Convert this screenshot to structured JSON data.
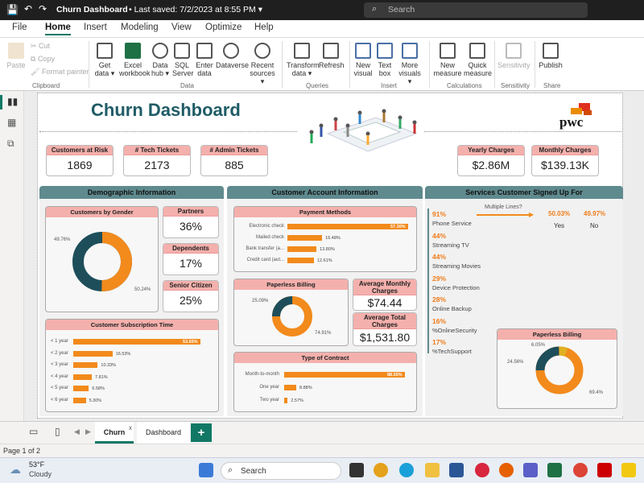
{
  "titlebar": {
    "doc_title": "Churn Dashboard",
    "saved": "Last saved: 7/2/2023 at 8:55 PM",
    "search_placeholder": "Search"
  },
  "menu": {
    "items": [
      "File",
      "Home",
      "Insert",
      "Modeling",
      "View",
      "Optimize",
      "Help"
    ],
    "active": "Home"
  },
  "ribbon": {
    "clipboard": {
      "paste": "Paste",
      "cut": "Cut",
      "copy": "Copy",
      "format_painter": "Format painter",
      "group": "Clipboard"
    },
    "data": {
      "get_data": "Get data",
      "excel": "Excel workbook",
      "data_hub": "Data hub",
      "sql": "SQL Server",
      "enter": "Enter data",
      "dataverse": "Dataverse",
      "recent": "Recent sources",
      "group": "Data"
    },
    "queries": {
      "transform": "Transform data",
      "refresh": "Refresh",
      "group": "Queries"
    },
    "insert": {
      "new_visual": "New visual",
      "text_box": "Text box",
      "more_visuals": "More visuals",
      "group": "Insert"
    },
    "calculations": {
      "new_measure": "New measure",
      "quick_measure": "Quick measure",
      "group": "Calculations"
    },
    "sensitivity": {
      "label": "Sensitivity",
      "group": "Sensitivity"
    },
    "share": {
      "publish": "Publish",
      "group": "Share"
    }
  },
  "report": {
    "title": "Churn Dashboard",
    "logo": "pwc",
    "kpis": [
      {
        "label": "Customers at Risk",
        "value": "1869"
      },
      {
        "label": "# Tech Tickets",
        "value": "2173"
      },
      {
        "label": "# Admin Tickets",
        "value": "885"
      },
      {
        "label": "Yearly Charges",
        "value": "$2.86M"
      },
      {
        "label": "Monthly Charges",
        "value": "$139.13K"
      }
    ],
    "sections": [
      "Demographic Information",
      "Customer Account Information",
      "Services Customer Signed Up For"
    ],
    "gender": {
      "title": "Customers by Gender",
      "left": "49.76%",
      "right": "50.24%"
    },
    "partners": {
      "label": "Partners",
      "value": "36%"
    },
    "dependents": {
      "label": "Dependents",
      "value": "17%"
    },
    "senior": {
      "label": "Senior Citizen",
      "value": "25%"
    },
    "subscription": {
      "title": "Customer Subscription Time",
      "rows": [
        {
          "label": "< 1 year",
          "value": "53.65%"
        },
        {
          "label": "< 2 year",
          "value": "16.53%"
        },
        {
          "label": "< 3 year",
          "value": "10.33%"
        },
        {
          "label": "< 4 year",
          "value": "7.81%"
        },
        {
          "label": "< 5 year",
          "value": "6.58%"
        },
        {
          "label": "< 6 year",
          "value": "5.30%"
        }
      ]
    },
    "payment": {
      "title": "Payment Methods",
      "rows": [
        {
          "label": "Electronic check",
          "value": "57.30%"
        },
        {
          "label": "Mailed check",
          "value": "16.48%"
        },
        {
          "label": "Bank transfer (a...",
          "value": "13.80%"
        },
        {
          "label": "Credit card (aut...",
          "value": "12.61%"
        }
      ]
    },
    "paperless_left": {
      "title": "Paperless Billing",
      "a": "25.09%",
      "b": "74.91%"
    },
    "avg_monthly": {
      "label": "Average Monthly Charges",
      "value": "$74.44"
    },
    "avg_total": {
      "label": "Average Total Charges",
      "value": "$1,531.80"
    },
    "contract": {
      "title": "Type of Contract",
      "rows": [
        {
          "label": "Month-to-month",
          "value": "88.55%"
        },
        {
          "label": "One year",
          "value": "8.88%"
        },
        {
          "label": "Two year",
          "value": "2.57%"
        }
      ]
    },
    "services": [
      {
        "pct": "91%",
        "name": "Phone Service"
      },
      {
        "pct": "44%",
        "name": "Streaming TV"
      },
      {
        "pct": "44%",
        "name": "Streaming Movies"
      },
      {
        "pct": "29%",
        "name": "Device Protection"
      },
      {
        "pct": "28%",
        "name": "Online Backup"
      },
      {
        "pct": "16%",
        "name": "%OnlineSecurity"
      },
      {
        "pct": "17%",
        "name": "%TechSupport"
      }
    ],
    "multiple_lines": {
      "label": "Multiple Lines?",
      "yes_pct": "50.03%",
      "no_pct": "49.97%",
      "yes": "Yes",
      "no": "No"
    },
    "paperless_right": {
      "title": "Paperless Billing",
      "a": "6.05%",
      "b": "24.56%",
      "c": "69.4%"
    }
  },
  "tabs": {
    "items": [
      "Churn",
      "Dashboard"
    ],
    "active": "Churn"
  },
  "status": {
    "page": "Page 1 of 2"
  },
  "taskbar": {
    "temp": "53°F",
    "weather": "Cloudy",
    "search": "Search"
  },
  "colors": {
    "accent": "#f28a1c",
    "teal": "#1d4e5a",
    "pink": "#f4b0ac",
    "section": "#5f8a8e",
    "title": "#1f5c66"
  }
}
